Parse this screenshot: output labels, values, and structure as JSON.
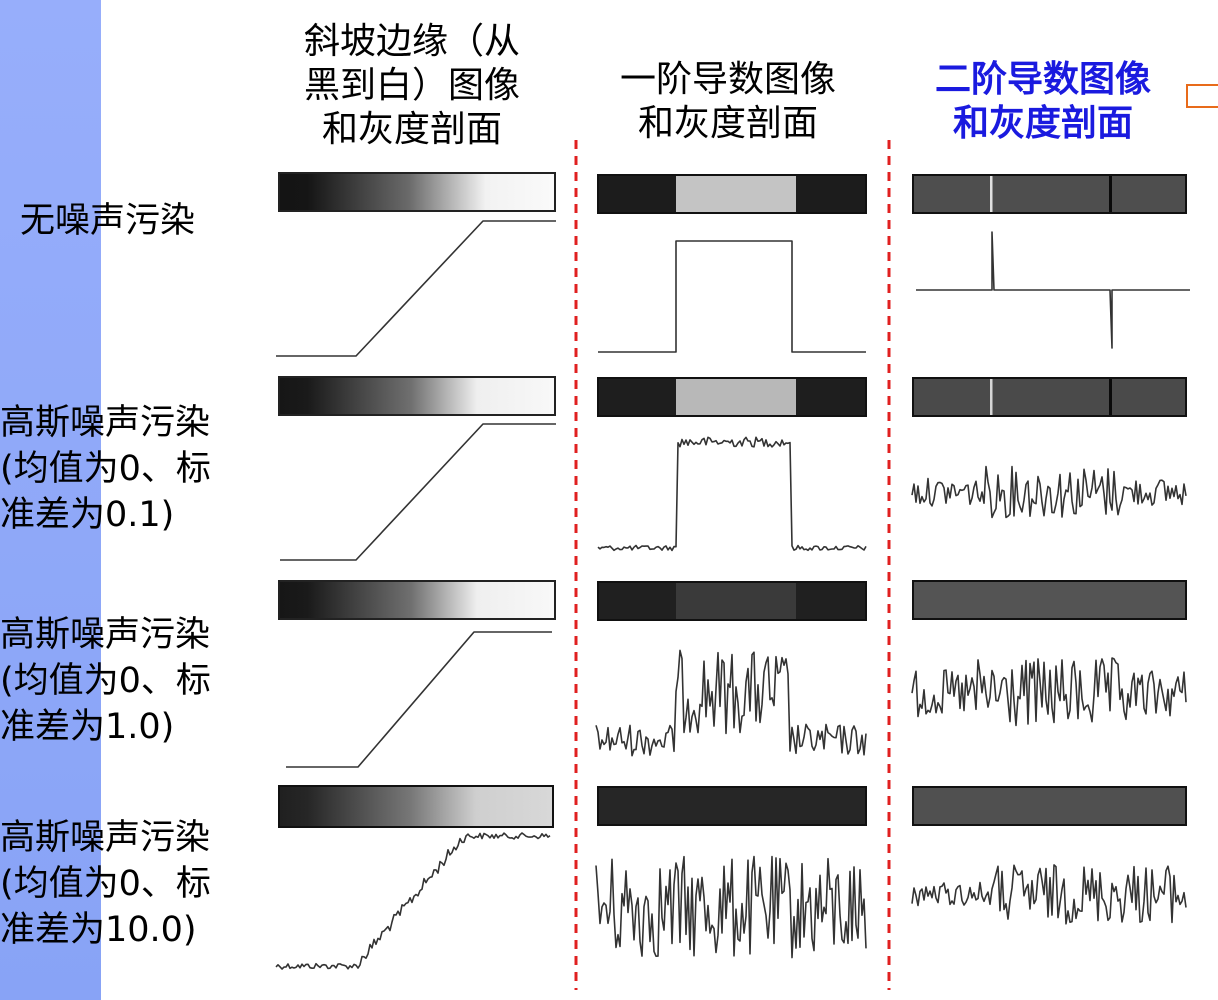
{
  "headers": {
    "ramp": [
      "斜坡边缘（从",
      "黑到白）图像",
      "和灰度剖面"
    ],
    "first_derivative": [
      "一阶导数图像",
      "和灰度剖面"
    ],
    "second_derivative": [
      "二阶导数图像",
      "和灰度剖面"
    ]
  },
  "rows": [
    {
      "label": [
        "无噪声污染"
      ]
    },
    {
      "label": [
        "高斯噪声污染",
        "(均值为0、标",
        "准差为0.1)"
      ]
    },
    {
      "label": [
        "高斯噪声污染",
        "(均值为0、标",
        "准差为1.0)"
      ]
    },
    {
      "label": [
        "高斯噪声污染",
        "(均值为0、标",
        "准差为10.0)"
      ]
    }
  ],
  "colors": {
    "sidebar": "#8fa8f8",
    "second_header": "#1a1adf",
    "divider": "#e02020",
    "corner_box": "#e86b1a"
  }
}
